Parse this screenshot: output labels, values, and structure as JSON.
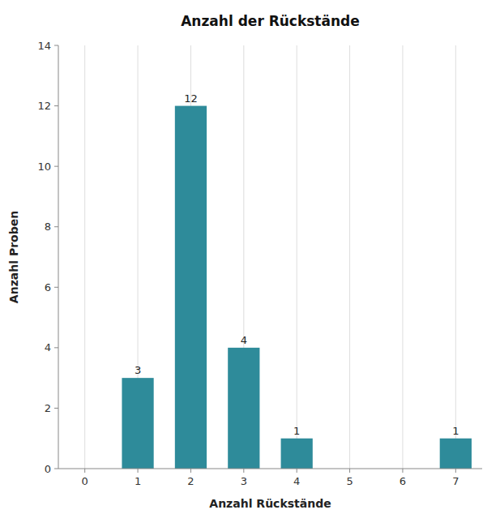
{
  "chart_data": {
    "type": "bar",
    "title": "Anzahl der Rückstände",
    "x_label": "Anzahl Rückstände",
    "y_label": "Anzahl Proben",
    "x": [
      1,
      2,
      3,
      4,
      7
    ],
    "values": [
      3,
      12,
      4,
      1,
      1
    ],
    "color": "#2e8b9a",
    "xlim": [
      -0.5,
      7.5
    ],
    "xticks": [
      0,
      1,
      2,
      3,
      4,
      5,
      6,
      7
    ],
    "ylim": [
      0,
      14
    ],
    "yticks": [
      0,
      2,
      4,
      6,
      8,
      10,
      12,
      14
    ],
    "grid": true,
    "data_labels": true
  }
}
